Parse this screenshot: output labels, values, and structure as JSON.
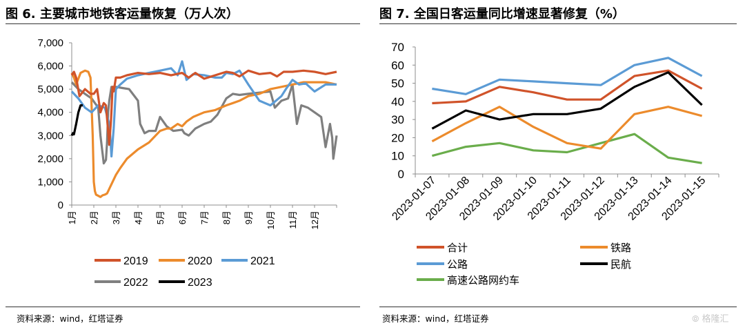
{
  "left_title": "图 6. 主要城市地铁客运量恢复（万人次）",
  "right_title": "图 7. 全国日客运量同比增速显著修复（%）",
  "left_source": "资料来源：wind，红塔证券",
  "right_source": "资料来源：wind，红塔证券",
  "watermark": "格隆汇",
  "colors": {
    "2019": "#D0532A",
    "2020": "#EC8B2C",
    "2021": "#5B9BD5",
    "2022": "#7F7F7F",
    "2023": "#000000",
    "合计": "#D0532A",
    "铁路": "#EC8B2C",
    "公路": "#5B9BD5",
    "民航": "#000000",
    "高速公路网约车": "#6AAD4B"
  },
  "chart_data": [
    {
      "type": "line",
      "title": "主要城市地铁客运量恢复（万人次）",
      "categories": [
        "1月",
        "2月",
        "3月",
        "4月",
        "5月",
        "6月",
        "7月",
        "8月",
        "9月",
        "10月",
        "11月",
        "12月"
      ],
      "ylim": [
        0,
        7000
      ],
      "yticks": [
        "0",
        "1,000",
        "2,000",
        "3,000",
        "4,000",
        "5,000",
        "6,000",
        "7,000"
      ],
      "grid": false,
      "legend_position": "bottom",
      "series": [
        {
          "name": "2019",
          "x": [
            0,
            0.1,
            0.2,
            0.35,
            0.6,
            0.85,
            1.0,
            1.15,
            1.3,
            1.45,
            1.55,
            1.7,
            1.78,
            1.85,
            1.9,
            2.0,
            2.2,
            2.5,
            3,
            3.5,
            4,
            4.5,
            5,
            5.3,
            5.6,
            6,
            6.5,
            7,
            7.3,
            7.6,
            8,
            8.5,
            9,
            9.3,
            9.6,
            10,
            10.5,
            11,
            11.5,
            12
          ],
          "values": [
            5600,
            5750,
            5500,
            4700,
            5000,
            4800,
            4800,
            5000,
            4000,
            4400,
            4300,
            2600,
            3700,
            5100,
            4900,
            5500,
            5500,
            5600,
            5700,
            5650,
            5700,
            5600,
            5700,
            5500,
            5700,
            5450,
            5600,
            5750,
            5700,
            5550,
            5800,
            5650,
            5700,
            5550,
            5750,
            5750,
            5800,
            5750,
            5650,
            5750
          ]
        },
        {
          "name": "2020",
          "x": [
            0,
            0.1,
            0.2,
            0.4,
            0.6,
            0.75,
            0.85,
            0.95,
            1.0,
            1.05,
            1.1,
            1.2,
            1.3,
            1.4,
            1.5,
            1.6,
            1.65,
            1.7,
            1.8,
            2.0,
            2.2,
            2.5,
            3,
            3.5,
            3.8,
            4,
            4.3,
            4.5,
            4.8,
            5,
            5.2,
            5.5,
            6,
            6.5,
            7,
            7.3,
            7.6,
            8,
            8.5,
            9,
            9.5,
            10,
            10.5,
            11,
            11.5,
            12
          ],
          "values": [
            5700,
            5500,
            5200,
            5700,
            5800,
            5750,
            5500,
            3000,
            1000,
            600,
            450,
            400,
            350,
            420,
            450,
            500,
            600,
            700,
            900,
            1300,
            1600,
            2000,
            2400,
            2700,
            3000,
            3200,
            3300,
            3300,
            3500,
            3400,
            3600,
            3800,
            4000,
            4100,
            4300,
            4400,
            4500,
            4700,
            4800,
            5000,
            5100,
            5200,
            5300,
            5300,
            5300,
            5200
          ]
        },
        {
          "name": "2021",
          "x": [
            0,
            0.3,
            0.6,
            0.9,
            1.2,
            1.5,
            1.7,
            1.75,
            1.8,
            1.9,
            2.0,
            2.2,
            2.5,
            3,
            3.5,
            4,
            4.5,
            4.8,
            5,
            5.2,
            5.5,
            6,
            6.5,
            6.8,
            7,
            7.3,
            7.6,
            8,
            8.5,
            9,
            9.5,
            9.7,
            10,
            10.3,
            10.6,
            11,
            11.5,
            12
          ],
          "values": [
            4900,
            4600,
            4200,
            4000,
            4300,
            4200,
            3500,
            2900,
            2100,
            3300,
            5000,
            5200,
            5450,
            5600,
            5700,
            5800,
            5900,
            5600,
            6200,
            5400,
            5650,
            5600,
            5500,
            5500,
            5700,
            5650,
            5800,
            5200,
            4500,
            4300,
            4700,
            5000,
            5400,
            5200,
            5250,
            4900,
            5200,
            5200
          ]
        },
        {
          "name": "2022",
          "x": [
            0,
            0.3,
            0.6,
            0.9,
            1.2,
            1.3,
            1.4,
            1.45,
            1.55,
            1.6,
            1.65,
            1.7,
            1.8,
            2.0,
            2.3,
            2.6,
            3,
            3.1,
            3.3,
            3.5,
            3.8,
            4,
            4.3,
            4.6,
            5,
            5.1,
            5.3,
            5.6,
            6,
            6.3,
            6.6,
            7,
            7.3,
            7.6,
            8,
            8.5,
            9,
            9.2,
            9.5,
            9.8,
            10,
            10.2,
            10.4,
            10.7,
            11,
            11.3,
            11.5,
            11.7,
            11.8,
            11.85,
            12
          ],
          "values": [
            5300,
            5000,
            4800,
            4600,
            4200,
            3000,
            2200,
            1800,
            1950,
            2700,
            4000,
            4500,
            5100,
            5100,
            5050,
            5000,
            4500,
            3500,
            3100,
            3200,
            3200,
            3800,
            3400,
            3200,
            3250,
            3100,
            3000,
            3300,
            3500,
            3600,
            3900,
            4600,
            4800,
            4750,
            4800,
            4850,
            4900,
            4200,
            4500,
            4600,
            5200,
            3500,
            4300,
            4200,
            4000,
            3800,
            2500,
            3500,
            2900,
            2000,
            3000
          ]
        },
        {
          "name": "2023",
          "x": [
            0,
            0.05,
            0.1,
            0.2,
            0.25,
            0.3,
            0.35,
            0.4,
            0.5
          ],
          "values": [
            3000,
            3100,
            3050,
            3500,
            3750,
            4000,
            4150,
            4300,
            4300
          ]
        }
      ]
    },
    {
      "type": "line",
      "title": "全国日客运量同比增速显著修复（%）",
      "categories": [
        "2023-01-07",
        "2023-01-08",
        "2023-01-09",
        "2023-01-10",
        "2023-01-11",
        "2023-01-12",
        "2023-01-13",
        "2023-01-14",
        "2023-01-15"
      ],
      "ylim": [
        0,
        70
      ],
      "yticks": [
        "0",
        "10",
        "20",
        "30",
        "40",
        "50",
        "60",
        "70"
      ],
      "grid": false,
      "legend_position": "bottom",
      "series": [
        {
          "name": "合计",
          "values": [
            39,
            40,
            48,
            45,
            41,
            41,
            54,
            57,
            47
          ]
        },
        {
          "name": "铁路",
          "values": [
            18,
            28,
            37,
            26,
            17,
            14,
            33,
            37,
            32
          ]
        },
        {
          "name": "公路",
          "values": [
            47,
            44,
            52,
            51,
            50,
            49,
            60,
            64,
            54
          ]
        },
        {
          "name": "民航",
          "values": [
            25,
            35,
            30,
            33,
            33,
            36,
            48,
            56,
            38
          ]
        },
        {
          "name": "高速公路网约车",
          "values": [
            10,
            15,
            17,
            13,
            12,
            17,
            22,
            9,
            6
          ]
        }
      ]
    }
  ]
}
